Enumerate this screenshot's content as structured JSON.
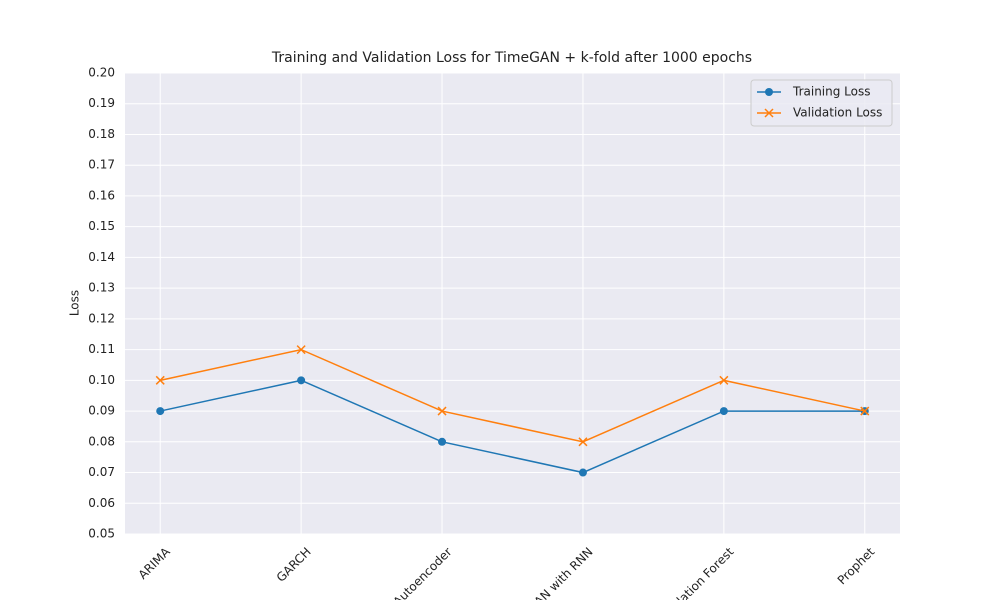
{
  "chart_data": {
    "type": "line",
    "title": "Training and Validation Loss for TimeGAN + k-fold after 1000 epochs",
    "y_label": "Loss",
    "categories": [
      "ARIMA",
      "GARCH",
      "Autoencoder",
      "GAN with RNN",
      "Isolation Forest",
      "Prophet"
    ],
    "series": [
      {
        "name": "Training Loss",
        "color": "#1f77b4",
        "marker": "o",
        "values": [
          0.09,
          0.1,
          0.08,
          0.07,
          0.09,
          0.09
        ]
      },
      {
        "name": "Validation Loss",
        "color": "#ff7f0e",
        "marker": "x",
        "values": [
          0.1,
          0.11,
          0.09,
          0.08,
          0.1,
          0.09
        ]
      }
    ],
    "ylim": [
      0.05,
      0.2
    ],
    "yticks": [
      {
        "value": 0.05,
        "label": "0.05"
      },
      {
        "value": 0.06,
        "label": "0.06"
      },
      {
        "value": 0.07,
        "label": "0.07"
      },
      {
        "value": 0.08,
        "label": "0.08"
      },
      {
        "value": 0.09,
        "label": "0.09"
      },
      {
        "value": 0.1,
        "label": "0.10"
      },
      {
        "value": 0.11,
        "label": "0.11"
      },
      {
        "value": 0.12,
        "label": "0.12"
      },
      {
        "value": 0.13,
        "label": "0.13"
      },
      {
        "value": 0.14,
        "label": "0.14"
      },
      {
        "value": 0.15,
        "label": "0.15"
      },
      {
        "value": 0.16,
        "label": "0.16"
      },
      {
        "value": 0.17,
        "label": "0.17"
      },
      {
        "value": 0.18,
        "label": "0.18"
      },
      {
        "value": 0.19,
        "label": "0.19"
      },
      {
        "value": 0.2,
        "label": "0.20"
      }
    ],
    "grid": true,
    "legend": "upper right"
  }
}
